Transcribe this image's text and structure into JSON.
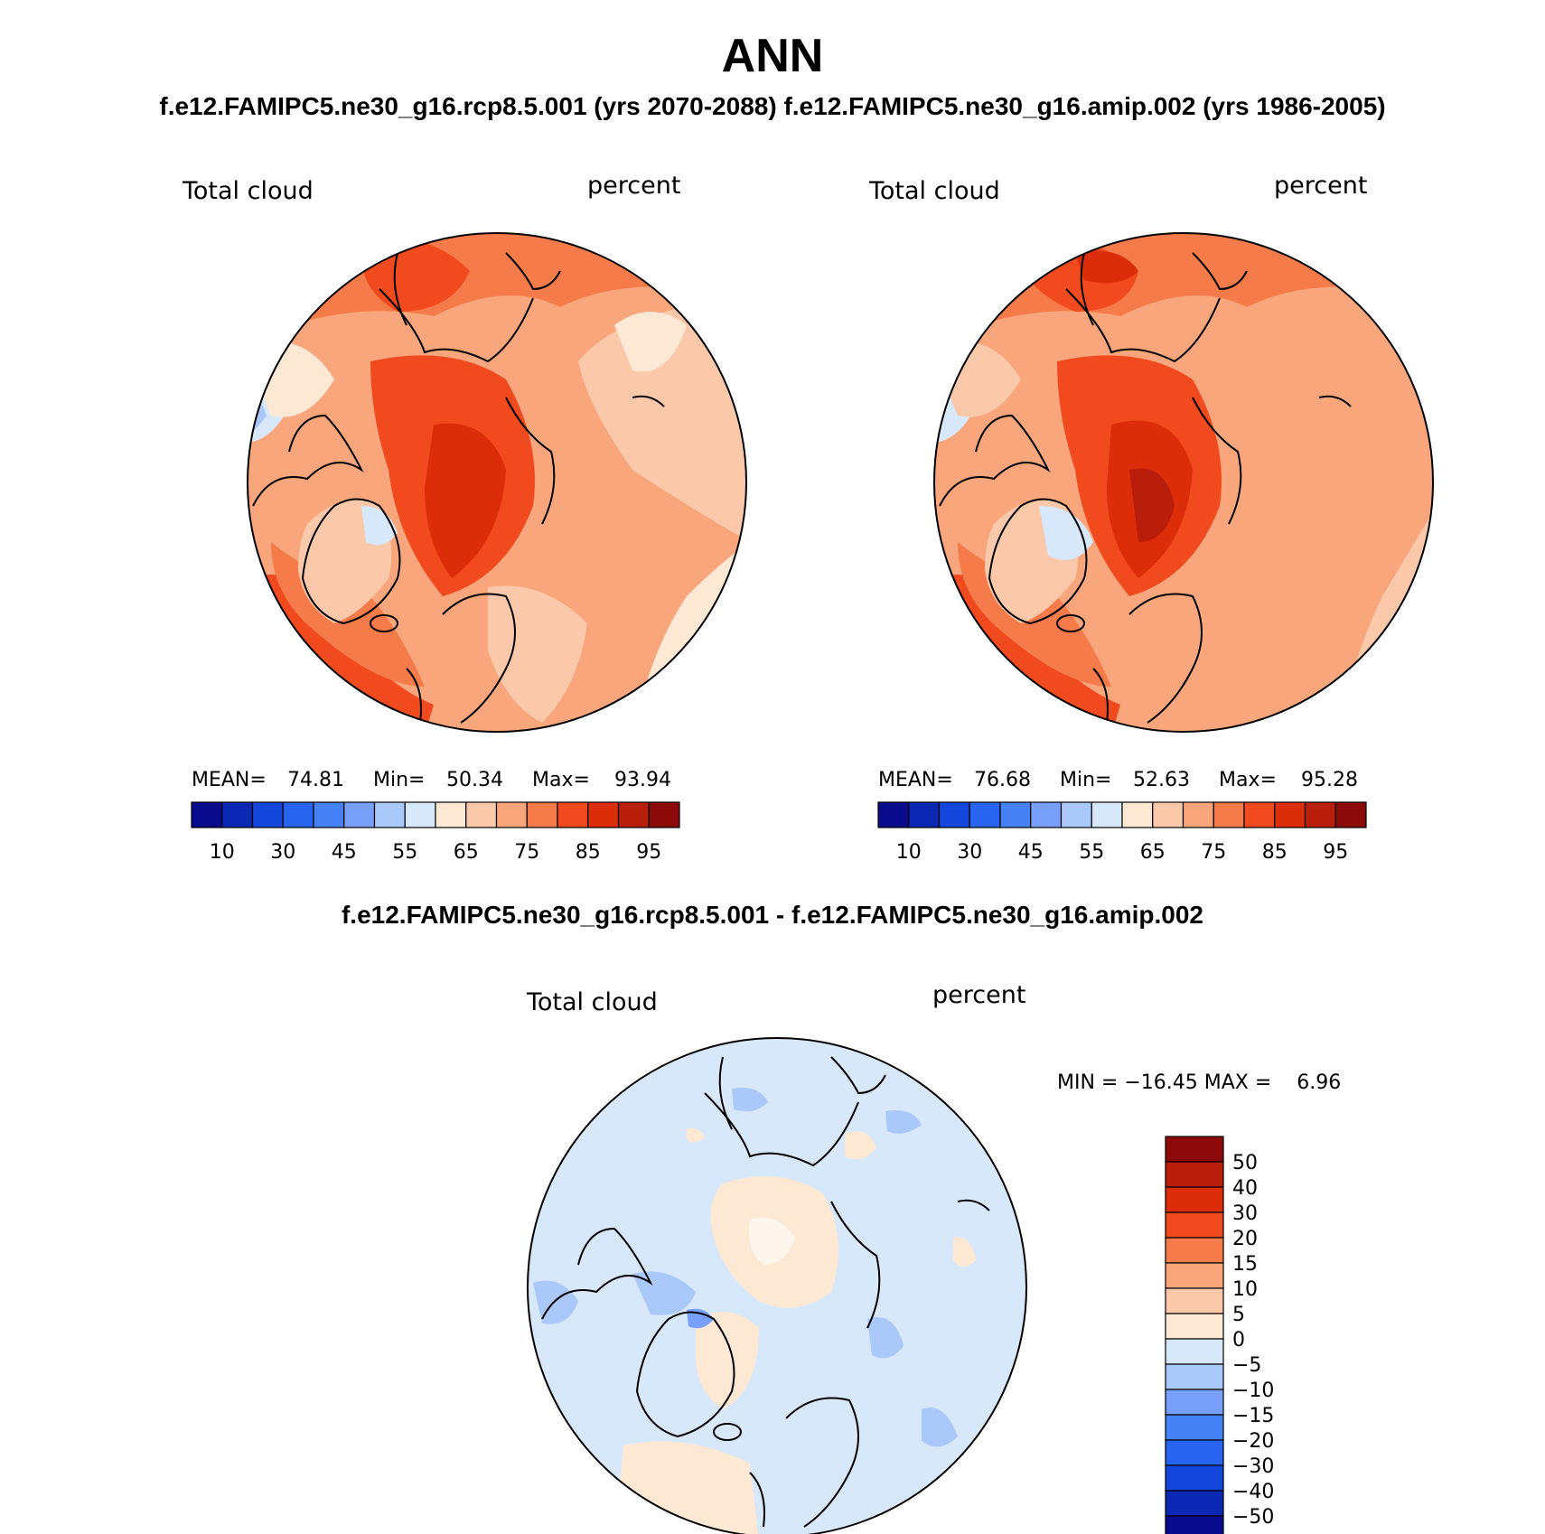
{
  "title": "ANN",
  "case_titles": "f.e12.FAMIPC5.ne30_g16.rcp8.5.001 (yrs 2070-2088)   f.e12.FAMIPC5.ne30_g16.amip.002 (yrs 1986-2005)",
  "diff_title": "f.e12.FAMIPC5.ne30_g16.rcp8.5.001 - f.e12.FAMIPC5.ne30_g16.amip.002",
  "panels": [
    {
      "variable": "Total cloud",
      "units": "percent",
      "mean_label": "MEAN=",
      "mean": "74.81",
      "min_label": "Min=",
      "min": "50.34",
      "max_label": "Max=",
      "max": "93.94"
    },
    {
      "variable": "Total cloud",
      "units": "percent",
      "mean_label": "MEAN=",
      "mean": "76.68",
      "min_label": "Min=",
      "min": "52.63",
      "max_label": "Max=",
      "max": "95.28"
    }
  ],
  "diff_panel": {
    "variable": "Total cloud",
    "units": "percent",
    "minmax_text": "MIN = −16.45 MAX =    6.96"
  },
  "abs_colorbar": {
    "colors": [
      "#0a0a8c",
      "#0a28b4",
      "#1446dc",
      "#2864f0",
      "#4682f5",
      "#78a0fa",
      "#aac8fa",
      "#d7e8fa",
      "#fde8d4",
      "#fcc8aa",
      "#f9a67c",
      "#f57c4a",
      "#f04a1e",
      "#dc2d0a",
      "#b91e0a",
      "#8c0a0a"
    ],
    "tick_labels": [
      "10",
      "30",
      "45",
      "55",
      "65",
      "75",
      "85",
      "95"
    ]
  },
  "diff_colorbar": {
    "colors": [
      "#0a0a8c",
      "#0a28b4",
      "#1446dc",
      "#2864f0",
      "#4682f5",
      "#78a0fa",
      "#aac8fa",
      "#d7e8fa",
      "#fde8d4",
      "#fcc8aa",
      "#f9a67c",
      "#f57c4a",
      "#f04a1e",
      "#dc2d0a",
      "#b91e0a",
      "#8c0a0a"
    ],
    "tick_labels": [
      "50",
      "40",
      "30",
      "20",
      "15",
      "10",
      "5",
      "0",
      "−5",
      "−10",
      "−15",
      "−20",
      "−30",
      "−40",
      "−50"
    ]
  }
}
